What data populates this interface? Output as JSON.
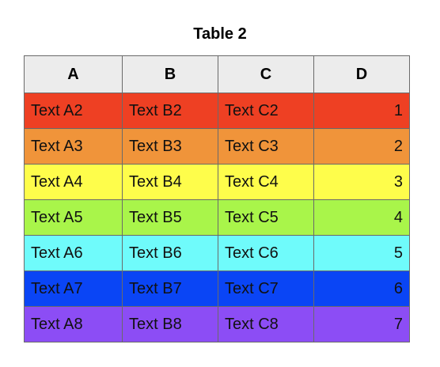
{
  "title": "Table 2",
  "columns": [
    "A",
    "B",
    "C",
    "D"
  ],
  "rows": [
    {
      "a": "Text A2",
      "b": "Text B2",
      "c": "Text C2",
      "d": "1",
      "color": "#ee4023"
    },
    {
      "a": "Text A3",
      "b": "Text B3",
      "c": "Text C3",
      "d": "2",
      "color": "#f0943a"
    },
    {
      "a": "Text A4",
      "b": "Text B4",
      "c": "Text C4",
      "d": "3",
      "color": "#fefd4b"
    },
    {
      "a": "Text A5",
      "b": "Text B5",
      "c": "Text C5",
      "d": "4",
      "color": "#a9f54a"
    },
    {
      "a": "Text A6",
      "b": "Text B6",
      "c": "Text C6",
      "d": "5",
      "color": "#6ffbfb"
    },
    {
      "a": "Text A7",
      "b": "Text B7",
      "c": "Text C7",
      "d": "6",
      "color": "#0a45f5"
    },
    {
      "a": "Text A8",
      "b": "Text B8",
      "c": "Text C8",
      "d": "7",
      "color": "#8c4df5"
    }
  ]
}
